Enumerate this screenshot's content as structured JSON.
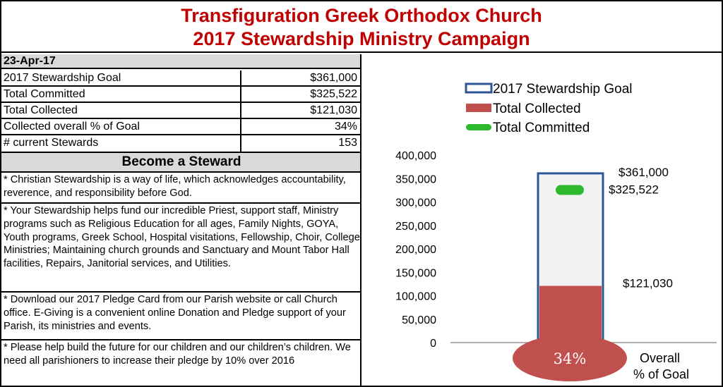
{
  "header": {
    "line1": "Transfiguration Greek Orthodox Church",
    "line2": "2017 Stewardship Ministry Campaign"
  },
  "summary": {
    "date": "23-Apr-17",
    "rows": [
      {
        "label": "2017 Stewardship Goal",
        "value": "$361,000"
      },
      {
        "label": "Total Committed",
        "value": "$325,522"
      },
      {
        "label": "Total Collected",
        "value": "$121,030"
      },
      {
        "label": "Collected overall % of Goal",
        "value": "34%"
      },
      {
        "label": "# current Stewards",
        "value": "153"
      }
    ]
  },
  "become": {
    "title": "Become a Steward",
    "paragraphs": [
      "* Christian Stewardship is a way of life, which acknowledges accountability, reverence, and responsibility before God.",
      "* Your Stewardship helps fund our incredible Priest, support staff, Ministry programs such as Religious Education for all ages, Family Nights, GOYA, Youth programs, Greek School, Hospital visitations, Fellowship, Choir, College Ministries; Maintaining church grounds and Sanctuary and Mount Tabor Hall facilities, Repairs, Janitorial services, and Utilities.",
      "* Download our 2017 Pledge Card from our Parish website or call Church office.  E-Giving is a convenient online Donation and Pledge support of your Parish, its ministries and events.",
      "* Please help build the future for our children and our children’s children. We need all parishioners to increase their pledge by 10% over 2016"
    ]
  },
  "chart_data": {
    "type": "bar",
    "ylim": [
      0,
      400000
    ],
    "yticks": [
      "0",
      "50,000",
      "100,000",
      "150,000",
      "200,000",
      "250,000",
      "300,000",
      "350,000",
      "400,000"
    ],
    "series": [
      {
        "name": "2017 Stewardship Goal",
        "value": 361000,
        "label": "$361,000",
        "color": "#2e5597"
      },
      {
        "name": "Total Collected",
        "value": 121030,
        "label": "$121,030",
        "color": "#c0504d"
      },
      {
        "name": "Total Committed",
        "value": 325522,
        "label": "$325,522",
        "color": "#2db92d"
      }
    ],
    "percent_label": "34%",
    "overall_label_line1": "Overall",
    "overall_label_line2": "% of Goal",
    "legend_position": "top"
  }
}
